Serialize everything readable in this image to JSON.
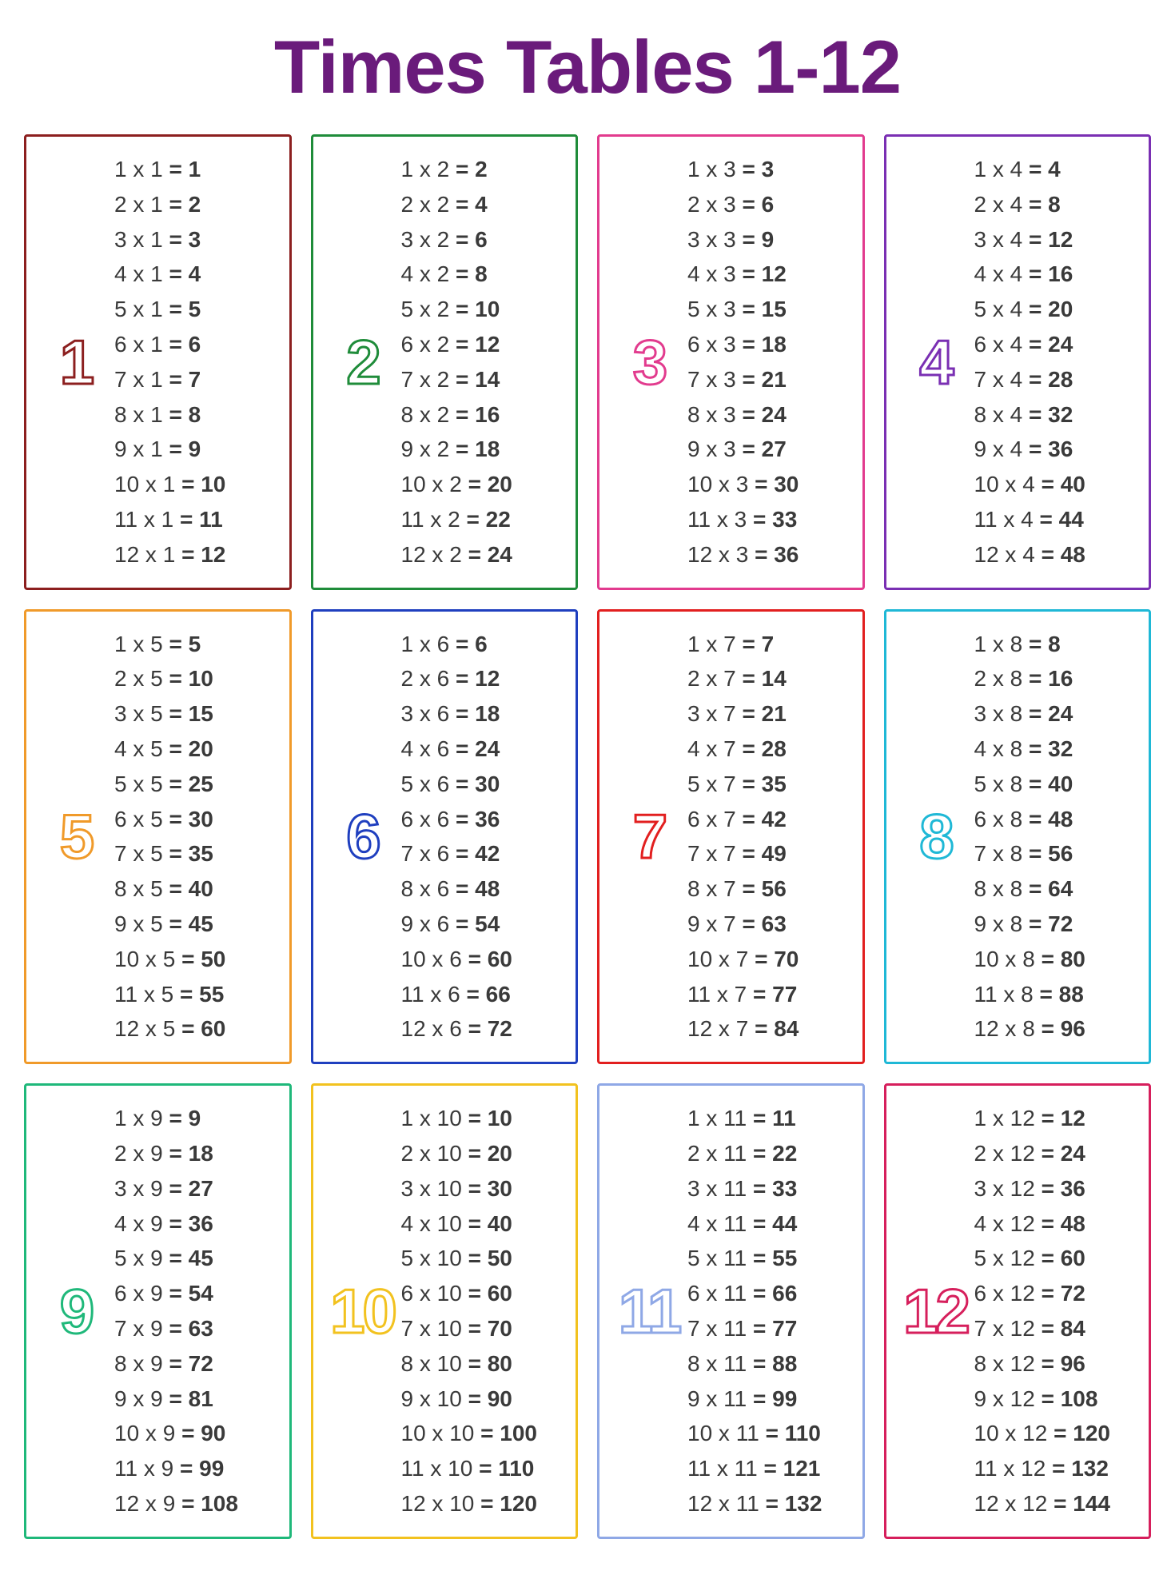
{
  "title": "Times Tables 1-12",
  "title_color": "#6a1b7b",
  "background_color": "#ffffff",
  "text_color": "#3a3a3a",
  "grid_columns": 4,
  "multiplicands": [
    1,
    2,
    3,
    4,
    5,
    6,
    7,
    8,
    9,
    10,
    11,
    12
  ],
  "tables": [
    {
      "n": 1,
      "label": "1",
      "border_color": "#8c1f1f",
      "number_color": "#8c1f1f"
    },
    {
      "n": 2,
      "label": "2",
      "border_color": "#1f8c3a",
      "number_color": "#1f8c3a"
    },
    {
      "n": 3,
      "label": "3",
      "border_color": "#e23b8e",
      "number_color": "#e23b8e"
    },
    {
      "n": 4,
      "label": "4",
      "border_color": "#7a2fb3",
      "number_color": "#7a2fb3"
    },
    {
      "n": 5,
      "label": "5",
      "border_color": "#f09a2a",
      "number_color": "#f09a2a"
    },
    {
      "n": 6,
      "label": "6",
      "border_color": "#1f3fbf",
      "number_color": "#1f3fbf"
    },
    {
      "n": 7,
      "label": "7",
      "border_color": "#e21f1f",
      "number_color": "#e21f1f"
    },
    {
      "n": 8,
      "label": "8",
      "border_color": "#1fb8d6",
      "number_color": "#1fb8d6"
    },
    {
      "n": 9,
      "label": "9",
      "border_color": "#1fb87a",
      "number_color": "#1fb87a"
    },
    {
      "n": 10,
      "label": "10",
      "border_color": "#f2c21f",
      "number_color": "#f2c21f"
    },
    {
      "n": 11,
      "label": "11",
      "border_color": "#8fa8e6",
      "number_color": "#8fa8e6"
    },
    {
      "n": 12,
      "label": "12",
      "border_color": "#d61f5c",
      "number_color": "#d61f5c"
    }
  ],
  "typography": {
    "title_fontsize": 94,
    "title_weight": 800,
    "equation_fontsize": 28,
    "bignum_fontsize": 78,
    "bignum_stroke_width": 3,
    "bignum_fill": "#ffffff"
  },
  "card": {
    "border_width": 3,
    "border_radius": 4,
    "gap": 24
  }
}
